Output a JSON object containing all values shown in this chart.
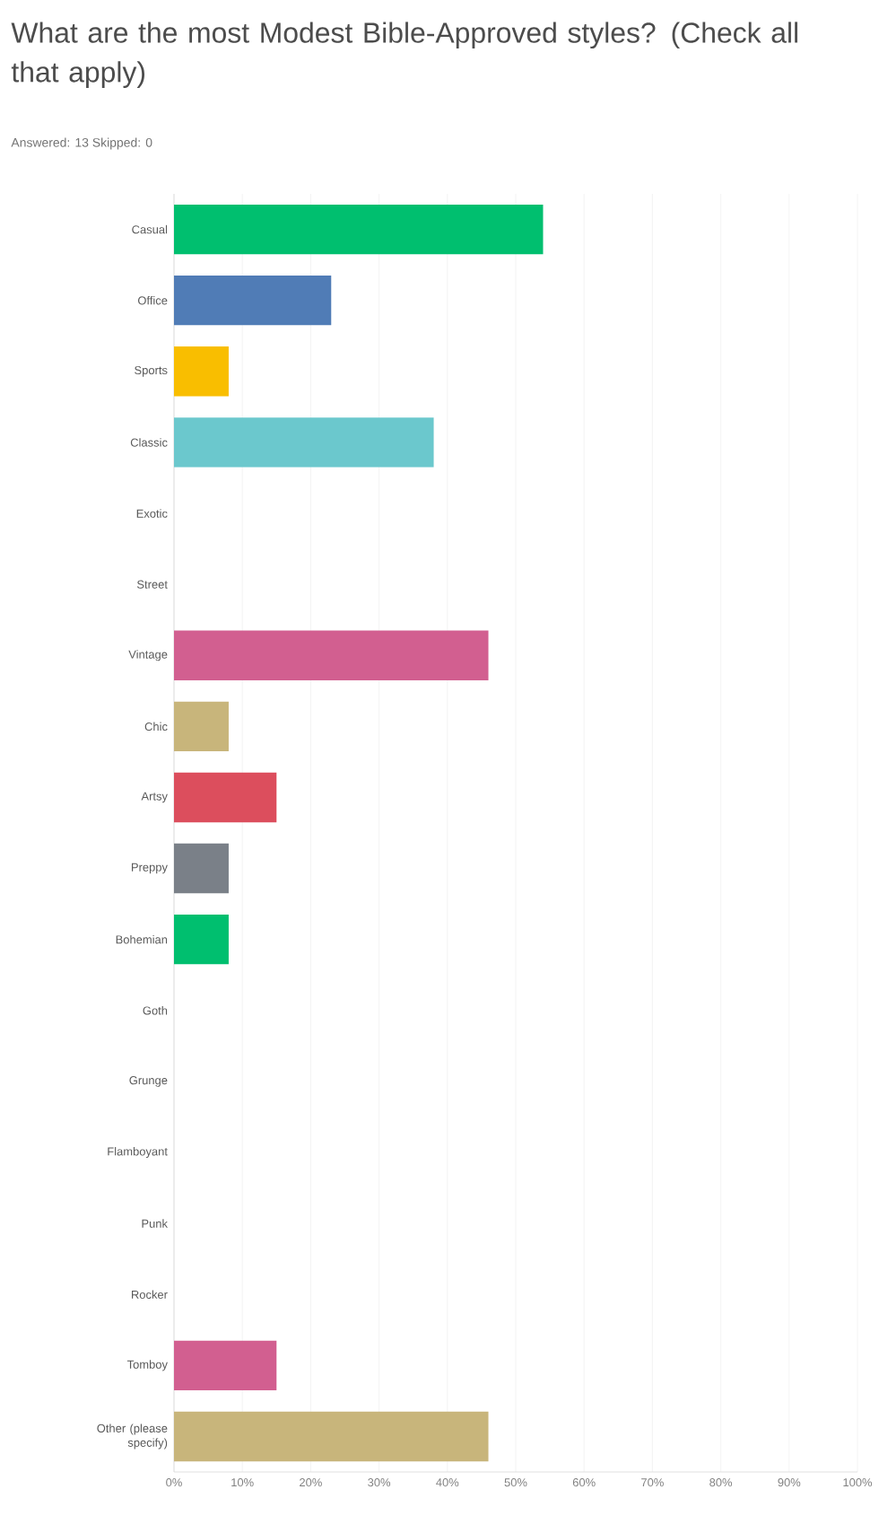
{
  "chart_data": {
    "type": "bar",
    "orientation": "horizontal",
    "title": "What are the most Modest Bible-Approved styles? (Check all that apply)",
    "subtitle": "Answered: 13    Skipped: 0",
    "categories": [
      "Casual",
      "Office",
      "Sports",
      "Classic",
      "Exotic",
      "Street",
      "Vintage",
      "Chic",
      "Artsy",
      "Preppy",
      "Bohemian",
      "Goth",
      "Grunge",
      "Flamboyant",
      "Punk",
      "Rocker",
      "Tomboy",
      "Other (please specify)"
    ],
    "values": [
      54,
      23,
      8,
      38,
      0,
      0,
      46,
      8,
      15,
      8,
      8,
      0,
      0,
      0,
      0,
      0,
      15,
      46
    ],
    "colors": [
      "#00bf6f",
      "#507cb6",
      "#f9be00",
      "#6bc8cd",
      null,
      null,
      "#d25f90",
      "#c8b57b",
      "#dc4e5d",
      "#7a8088",
      "#00bf6f",
      null,
      null,
      null,
      null,
      null,
      "#d25f90",
      "#c8b57b"
    ],
    "xlim": [
      0,
      100
    ],
    "xticks": [
      {
        "value": 0,
        "label": "0%"
      },
      {
        "value": 10,
        "label": "10%"
      },
      {
        "value": 20,
        "label": "20%"
      },
      {
        "value": 30,
        "label": "30%"
      },
      {
        "value": 40,
        "label": "40%"
      },
      {
        "value": 50,
        "label": "50%"
      },
      {
        "value": 60,
        "label": "60%"
      },
      {
        "value": 70,
        "label": "70%"
      },
      {
        "value": 80,
        "label": "80%"
      },
      {
        "value": 90,
        "label": "90%"
      },
      {
        "value": 100,
        "label": "100%"
      }
    ],
    "grid": "x"
  }
}
